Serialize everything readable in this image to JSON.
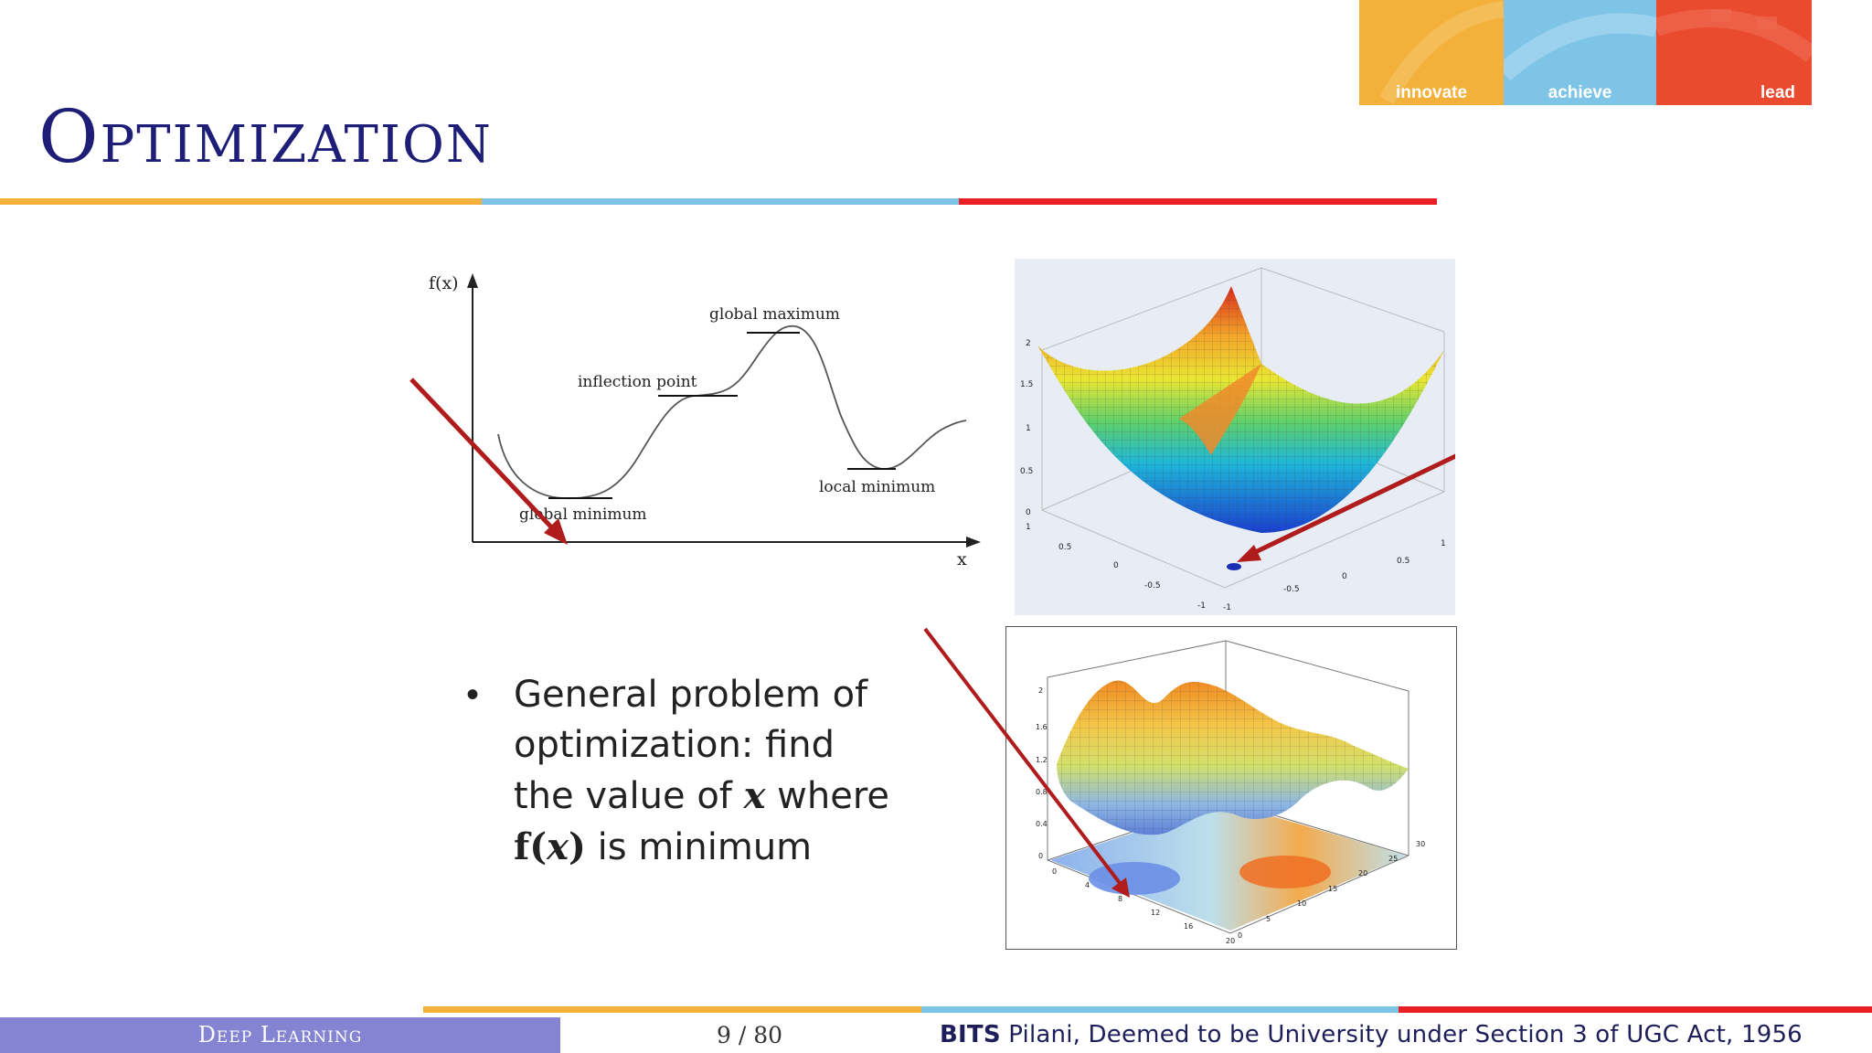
{
  "slide": {
    "title": "Optimization",
    "brand": {
      "innovate": "innovate",
      "achieve": "achieve",
      "lead": "lead"
    },
    "colors": {
      "gold": "#f3b03a",
      "blue": "#7ec4e6",
      "red": "#ea1f25",
      "title": "#1e1e78",
      "footer_left": "#8484d2"
    }
  },
  "curve_figure": {
    "ylabel": "f(x)",
    "xlabel": "x",
    "labels": {
      "global_maximum": "global maximum",
      "inflection_point": "inflection point",
      "local_minimum": "local minimum",
      "global_minimum": "global minimum"
    }
  },
  "bowl_figure": {
    "z_ticks": [
      "2",
      "1.5",
      "1",
      "0.5",
      "0"
    ],
    "x_ticks": [
      "1",
      "0.5",
      "0",
      "-0.5",
      "-1"
    ],
    "y_ticks": [
      "-1",
      "-0.5",
      "0",
      "0.5",
      "1"
    ]
  },
  "surface_figure": {
    "z_ticks": [
      "2",
      "1.6",
      "1.2",
      "0.8",
      "0.4",
      "0"
    ],
    "x_ticks": [
      "0",
      "4",
      "8",
      "12",
      "16",
      "20"
    ],
    "y_ticks": [
      "0",
      "5",
      "10",
      "15",
      "20",
      "25",
      "30"
    ]
  },
  "bullet": {
    "line1": "General problem of",
    "line2": "optimization: find",
    "line3a": "the value of ",
    "line3_var": "x",
    "line3b": " where",
    "line4_f": "f(",
    "line4_var": "x",
    "line4_close": ")",
    "line4_rest": " is minimum"
  },
  "footer": {
    "course": "Deep Learning",
    "page": "9 / 80",
    "institution_bold": "BITS",
    "institution_rest": " Pilani, Deemed to be University under Section 3 of UGC Act, 1956"
  }
}
